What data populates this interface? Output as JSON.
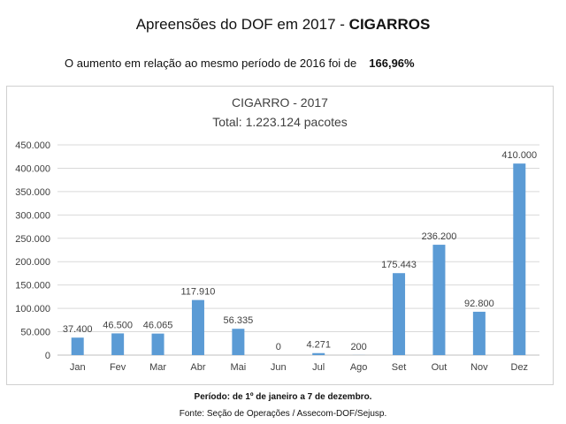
{
  "page": {
    "title_prefix": "Apreensões do DOF em 2017 - ",
    "title_emphasis": "CIGARROS",
    "subtitle_text": "O aumento em relação ao mesmo período de 2016 foi de",
    "subtitle_value": "166,96%",
    "period_note": "Período: de 1º de janeiro a 7 de dezembro.",
    "source_note": "Fonte: Seção de Operações / Assecom-DOF/Sejusp."
  },
  "chart_data": {
    "type": "bar",
    "title": "CIGARRO - 2017",
    "subtitle": "Total: 1.223.124 pacotes",
    "categories": [
      "Jan",
      "Fev",
      "Mar",
      "Abr",
      "Mai",
      "Jun",
      "Jul",
      "Ago",
      "Set",
      "Out",
      "Nov",
      "Dez"
    ],
    "values": [
      37400,
      46500,
      46065,
      117910,
      56335,
      0,
      4271,
      200,
      175443,
      236200,
      92800,
      410000
    ],
    "value_labels": [
      "37.400",
      "46.500",
      "46.065",
      "117.910",
      "56.335",
      "0",
      "4.271",
      "200",
      "175.443",
      "236.200",
      "92.800",
      "410.000"
    ],
    "ylim": [
      0,
      450000
    ],
    "yticks": [
      0,
      50000,
      100000,
      150000,
      200000,
      250000,
      300000,
      350000,
      400000,
      450000
    ],
    "ytick_labels": [
      "0",
      "50.000",
      "100.000",
      "150.000",
      "200.000",
      "250.000",
      "300.000",
      "350.000",
      "400.000",
      "450.000"
    ],
    "grid": true,
    "bar_color": "#5b9bd5"
  }
}
